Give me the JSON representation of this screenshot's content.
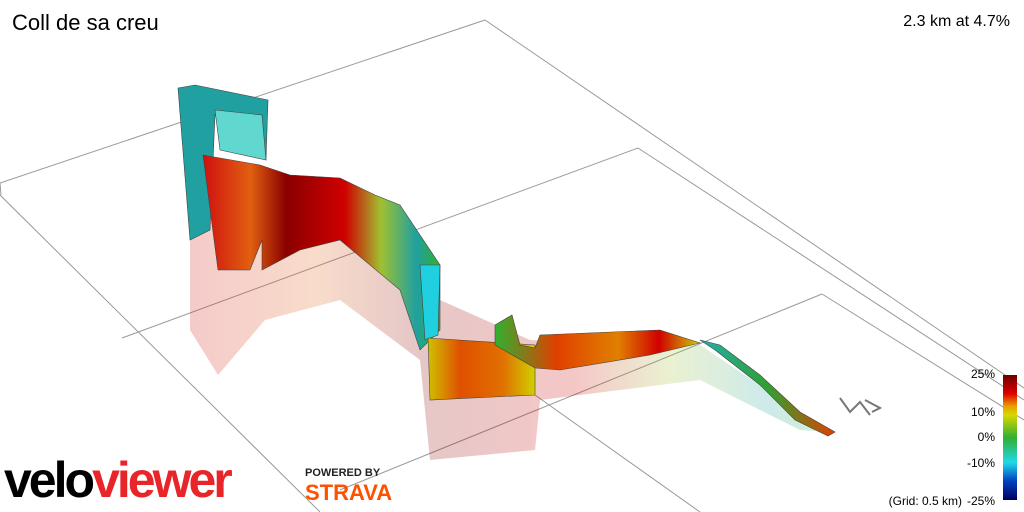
{
  "header": {
    "title": "Coll de sa creu",
    "summary": "2.3 km at 4.7%"
  },
  "legend": {
    "labels": [
      "25%",
      "10%",
      "0%",
      "-10%",
      "-25%"
    ]
  },
  "grid_note": "(Grid: 0.5 km)",
  "branding": {
    "logo_part1": "velo",
    "logo_part2": "viewer",
    "powered_by": "POWERED BY",
    "partner": "STRAVA"
  }
}
